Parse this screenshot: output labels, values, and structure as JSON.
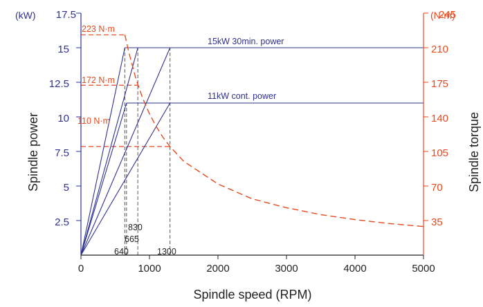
{
  "colors": {
    "power": "#2e3192",
    "torque": "#e8491d",
    "axis": "#231f20",
    "marker": "#555555"
  },
  "chart_data": {
    "type": "line",
    "title": "",
    "xlabel": "Spindle speed (RPM)",
    "ylabel": "Spindle power",
    "ylabel_right": "Spindle torque",
    "y_unit": "(kW)",
    "y2_unit": "(N·m)",
    "xlim": [
      0,
      5000
    ],
    "ylim": [
      0,
      17.5
    ],
    "y2lim": [
      0,
      245
    ],
    "x_ticks": [
      "0",
      "1000",
      "2000",
      "3000",
      "4000",
      "5000"
    ],
    "y_ticks": [
      "2.5",
      "5",
      "7.5",
      "10",
      "12.5",
      "15",
      "17.5"
    ],
    "y2_ticks": [
      "35",
      "70",
      "105",
      "140",
      "175",
      "210",
      "245"
    ],
    "x_tick_values": [
      0,
      1000,
      2000,
      3000,
      4000,
      5000
    ],
    "y_tick_values": [
      2.5,
      5,
      7.5,
      10,
      12.5,
      15,
      17.5
    ],
    "y2_tick_values": [
      35,
      70,
      105,
      140,
      175,
      210,
      245
    ],
    "annotations": {
      "power_30min": "15kW 30min. power",
      "power_cont": "11kW cont. power",
      "torque_223": "223 N·m",
      "torque_172": "172 N·m",
      "torque_110": "110 N·m",
      "rpm_640": "640",
      "rpm_665": "665",
      "rpm_830": "830",
      "rpm_1300": "1300"
    },
    "series": [
      {
        "name": "15kW 30min. power",
        "axis": "left",
        "style": "solid",
        "x": [
          640,
          5000
        ],
        "y": [
          15,
          15
        ]
      },
      {
        "name": "11kW cont. power",
        "axis": "left",
        "style": "solid",
        "x": [
          665,
          5000
        ],
        "y": [
          11,
          11
        ]
      },
      {
        "axis": "left",
        "style": "solid",
        "x": [
          0,
          640
        ],
        "y": [
          0,
          15
        ]
      },
      {
        "axis": "left",
        "style": "solid",
        "x": [
          0,
          830
        ],
        "y": [
          0,
          15
        ]
      },
      {
        "axis": "left",
        "style": "solid",
        "x": [
          0,
          1300
        ],
        "y": [
          0,
          15
        ]
      },
      {
        "axis": "left",
        "style": "solid",
        "x": [
          0,
          665
        ],
        "y": [
          0,
          11
        ]
      },
      {
        "axis": "left",
        "style": "solid",
        "x": [
          0,
          1300
        ],
        "y": [
          0,
          11
        ]
      },
      {
        "axis": "right",
        "style": "dashed",
        "x": [
          640,
          700,
          800,
          900,
          1000,
          1100,
          1200,
          1300,
          1500,
          2000,
          2500,
          3000,
          3500,
          4000,
          4500,
          5000
        ],
        "y": [
          223,
          205,
          179,
          159,
          143,
          130,
          119,
          110,
          95,
          72,
          57,
          48,
          41,
          36,
          32,
          29
        ]
      }
    ],
    "torque_levels": [
      {
        "y": 223,
        "x_end": 640
      },
      {
        "y": 172,
        "x_end": 830
      },
      {
        "y": 110,
        "x_end": 1300
      }
    ],
    "rpm_markers": [
      {
        "x": 640,
        "y_top": 15
      },
      {
        "x": 665,
        "y_top": 11
      },
      {
        "x": 830,
        "y_top": 15
      },
      {
        "x": 1300,
        "y_top": 15
      }
    ]
  }
}
